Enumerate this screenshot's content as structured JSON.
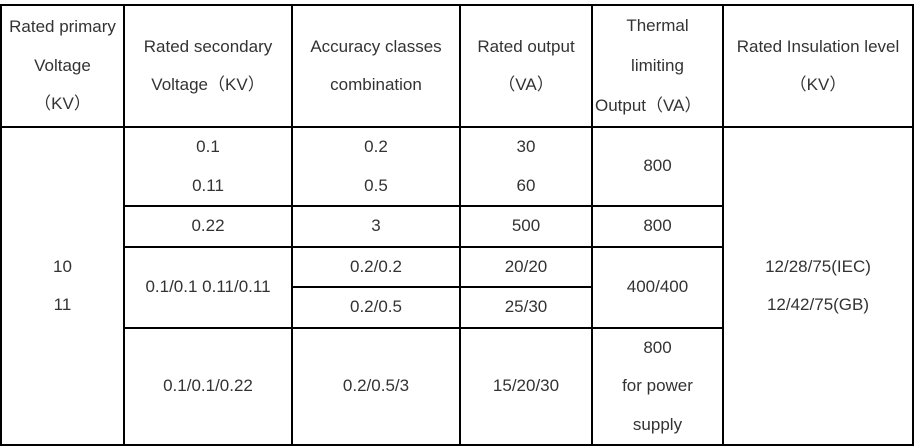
{
  "headers": {
    "primary": [
      "Rated primary",
      "Voltage",
      "（KV）"
    ],
    "secondary": [
      "Rated secondary",
      "Voltage（KV）"
    ],
    "accuracy": [
      "Accuracy classes",
      "combination"
    ],
    "output": [
      "Rated output",
      "（VA）"
    ],
    "thermal": [
      "Thermal",
      "limiting",
      "Output（VA）"
    ],
    "insulation": [
      "Rated Insulation level",
      "（KV）"
    ]
  },
  "primary_voltage": [
    "10",
    "11"
  ],
  "insulation_level": [
    "12/28/75(IEC)",
    "12/42/75(GB)"
  ],
  "rows": {
    "r1": {
      "secondary": [
        "0.1",
        "0.11"
      ],
      "accuracy": [
        "0.2",
        "0.5"
      ],
      "output": [
        "30",
        "60"
      ],
      "thermal": "800"
    },
    "r2": {
      "secondary": "0.22",
      "accuracy": "3",
      "output": "500",
      "thermal": "800"
    },
    "r3": {
      "secondary": "0.1/0.1 0.11/0.11",
      "accuracy_a": "0.2/0.2",
      "output_a": "20/20",
      "accuracy_b": "0.2/0.5",
      "output_b": "25/30",
      "thermal": "400/400"
    },
    "r4": {
      "secondary": "0.1/0.1/0.22",
      "accuracy": "0.2/0.5/3",
      "output": "15/20/30",
      "thermal": [
        "800",
        "for power",
        "supply"
      ]
    }
  }
}
